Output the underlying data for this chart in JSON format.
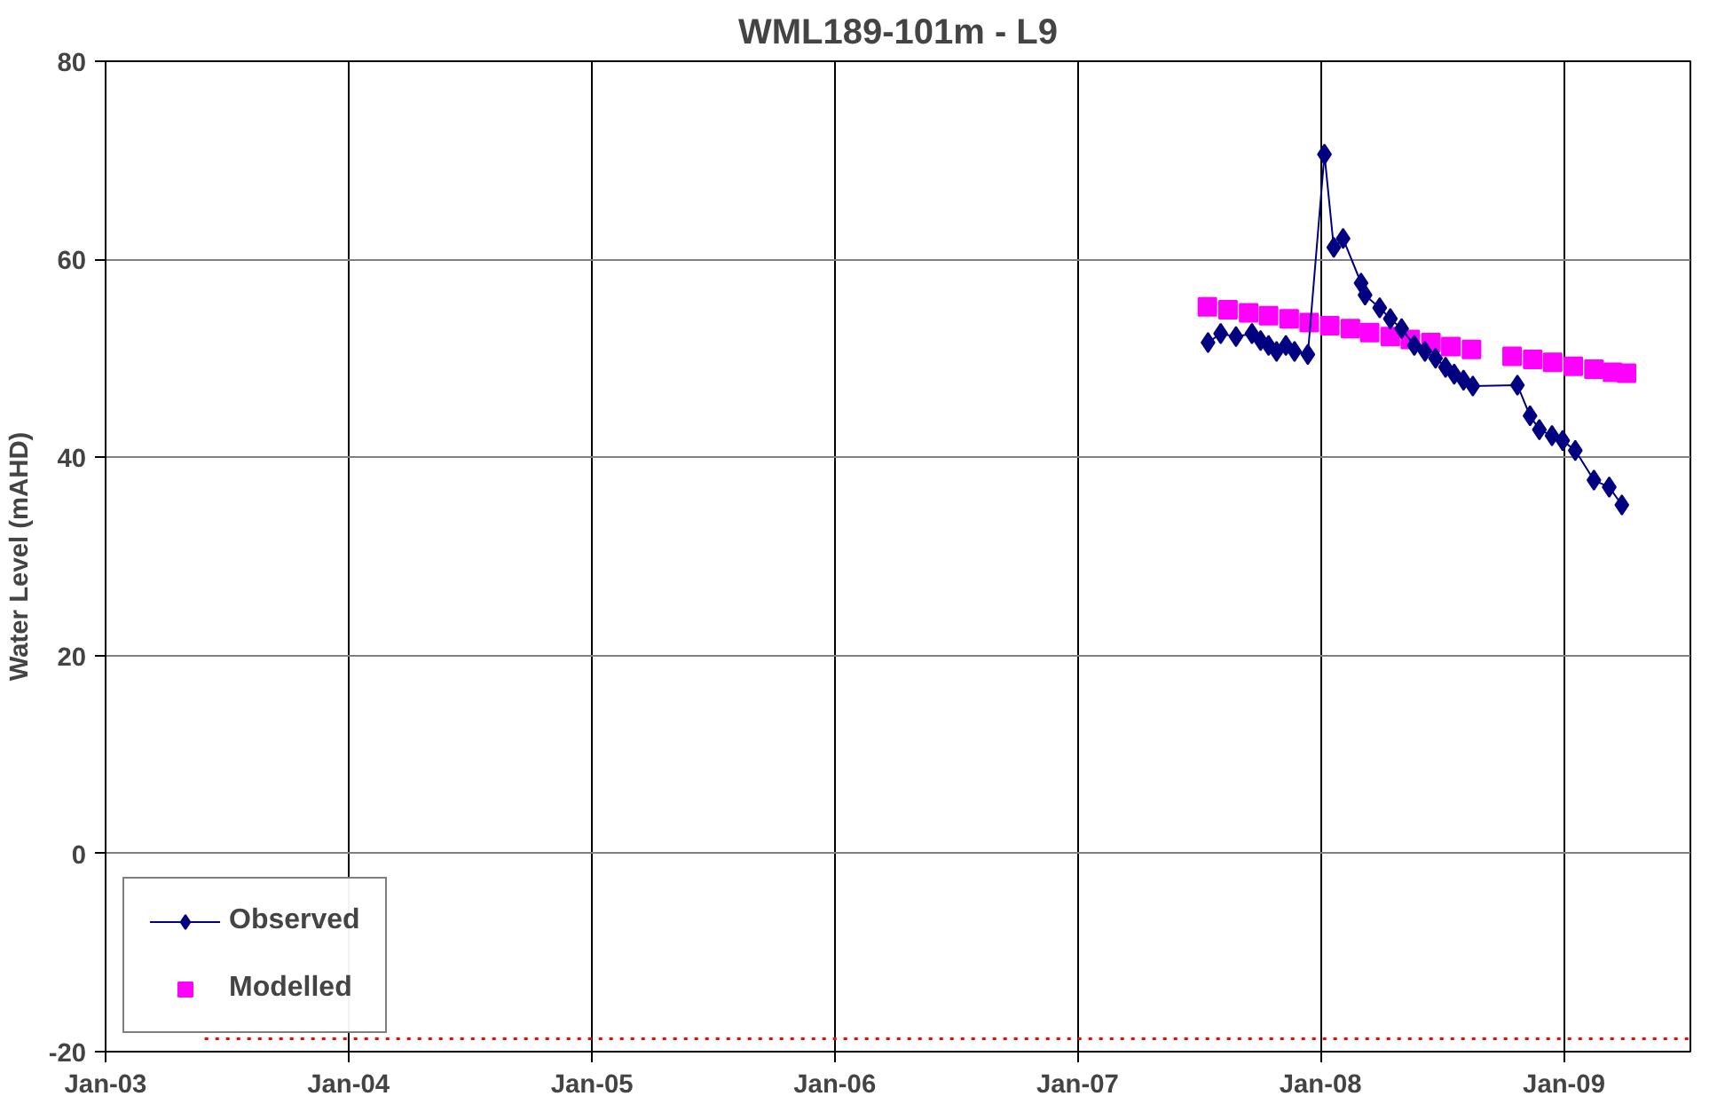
{
  "chart_data": {
    "type": "line",
    "title": "WML189-101m - L9",
    "ylabel": "Water Level (mAHD)",
    "xlim": [
      "2003-01-01",
      "2009-07-10"
    ],
    "ylim": [
      -20,
      80
    ],
    "yticks": [
      -20,
      0,
      20,
      40,
      60,
      80
    ],
    "xticks": [
      {
        "value": "2003-01-01",
        "label": "Jan-03"
      },
      {
        "value": "2004-01-01",
        "label": "Jan-04"
      },
      {
        "value": "2005-01-01",
        "label": "Jan-05"
      },
      {
        "value": "2006-01-01",
        "label": "Jan-06"
      },
      {
        "value": "2007-01-01",
        "label": "Jan-07"
      },
      {
        "value": "2008-01-01",
        "label": "Jan-08"
      },
      {
        "value": "2009-01-01",
        "label": "Jan-09"
      }
    ],
    "grid": true,
    "legend": "bottom left",
    "series": [
      {
        "name": "Observed",
        "marker": "diamond",
        "line_style": "solid",
        "color": "#000080",
        "x": [
          "2007-07-16",
          "2007-08-04",
          "2007-08-27",
          "2007-09-20",
          "2007-10-03",
          "2007-10-15",
          "2007-10-27",
          "2007-11-10",
          "2007-11-23",
          "2007-12-13",
          "2008-01-07",
          "2008-01-21",
          "2008-02-04",
          "2008-03-02",
          "2008-03-08",
          "2008-03-30",
          "2008-04-15",
          "2008-05-02",
          "2008-05-21",
          "2008-06-06",
          "2008-06-22",
          "2008-07-07",
          "2008-07-20",
          "2008-08-03",
          "2008-08-17",
          "2008-10-23",
          "2008-11-11",
          "2008-11-25",
          "2008-12-14",
          "2008-12-30",
          "2009-01-18",
          "2009-02-15",
          "2009-03-10",
          "2009-03-29"
        ],
        "values": [
          51.6,
          52.5,
          52.2,
          52.5,
          51.8,
          51.3,
          50.7,
          51.3,
          50.7,
          50.4,
          70.6,
          61.2,
          62.1,
          57.6,
          56.4,
          55.1,
          54.0,
          53.0,
          51.3,
          50.7,
          50.0,
          49.1,
          48.4,
          47.8,
          47.2,
          47.3,
          44.2,
          42.8,
          42.2,
          41.7,
          40.7,
          37.7,
          37.0,
          35.2
        ]
      },
      {
        "name": "Modelled",
        "type": "scatter",
        "marker": "square",
        "color": "#ff00ff",
        "x": [
          "2007-07-15",
          "2007-08-15",
          "2007-09-15",
          "2007-10-15",
          "2007-11-15",
          "2007-12-15",
          "2008-01-15",
          "2008-02-15",
          "2008-03-15",
          "2008-04-15",
          "2008-05-15",
          "2008-06-15",
          "2008-07-15",
          "2008-08-15",
          "2008-10-15",
          "2008-11-15",
          "2008-12-15",
          "2009-01-15",
          "2009-02-15",
          "2009-03-15",
          "2009-04-05"
        ],
        "values": [
          55.2,
          54.9,
          54.6,
          54.3,
          54.0,
          53.6,
          53.3,
          53.0,
          52.6,
          52.2,
          51.9,
          51.6,
          51.2,
          50.9,
          50.2,
          49.9,
          49.6,
          49.2,
          48.9,
          48.6,
          48.5
        ]
      },
      {
        "marker": "none",
        "line_style": "dotted",
        "color": "#ff0000",
        "x": [
          "2003-05-30",
          "2009-07-10"
        ],
        "values": [
          -18.7,
          -18.7
        ]
      }
    ]
  }
}
